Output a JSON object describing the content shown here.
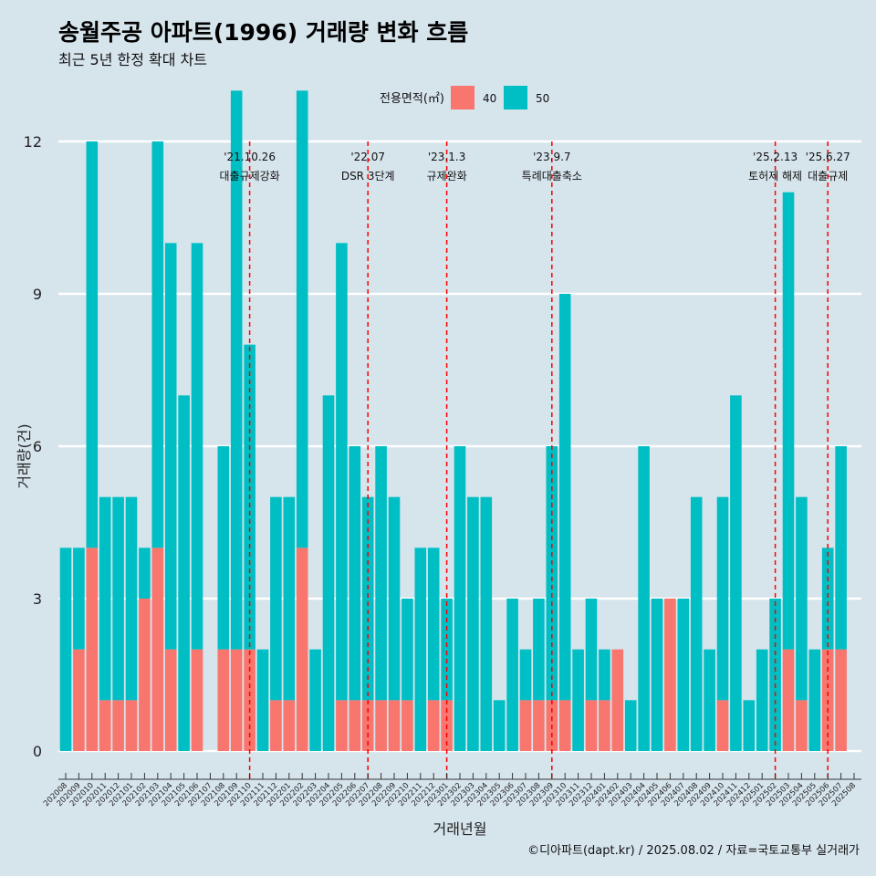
{
  "chart_data": {
    "type": "bar",
    "title": "송월주공 아파트(1996) 거래량 변화 흐름",
    "subtitle": "최근 5년 한정 확대 차트",
    "xlabel": "거래년월",
    "ylabel": "거래량(건)",
    "ylim": [
      0,
      12
    ],
    "yticks": [
      0,
      3,
      6,
      9,
      12
    ],
    "grid": true,
    "legend": {
      "title": "전용면적(㎡)",
      "position": "top"
    },
    "categories": [
      "202008",
      "202009",
      "202010",
      "202011",
      "202012",
      "202101",
      "202102",
      "202103",
      "202104",
      "202105",
      "202106",
      "202107",
      "202108",
      "202109",
      "202110",
      "202111",
      "202112",
      "202201",
      "202202",
      "202203",
      "202204",
      "202205",
      "202206",
      "202207",
      "202208",
      "202209",
      "202210",
      "202211",
      "202212",
      "202301",
      "202302",
      "202303",
      "202304",
      "202305",
      "202306",
      "202307",
      "202308",
      "202309",
      "202310",
      "202311",
      "202312",
      "202401",
      "202402",
      "202403",
      "202404",
      "202405",
      "202406",
      "202407",
      "202408",
      "202409",
      "202410",
      "202411",
      "202412",
      "202501",
      "202502",
      "202503",
      "202504",
      "202505",
      "202506",
      "202507",
      "202508"
    ],
    "series": [
      {
        "name": "40",
        "color": "#f8766d",
        "values": [
          0,
          2,
          4,
          1,
          1,
          1,
          3,
          4,
          2,
          0,
          2,
          0,
          2,
          2,
          2,
          0,
          1,
          1,
          4,
          0,
          0,
          1,
          1,
          1,
          1,
          1,
          1,
          0,
          1,
          1,
          0,
          0,
          0,
          0,
          0,
          1,
          1,
          1,
          1,
          0,
          1,
          1,
          2,
          0,
          0,
          0,
          3,
          0,
          0,
          0,
          1,
          0,
          0,
          0,
          0,
          2,
          1,
          0,
          2,
          2,
          0
        ]
      },
      {
        "name": "50",
        "color": "#00bfc4",
        "values": [
          4,
          2,
          8,
          4,
          4,
          4,
          1,
          8,
          8,
          7,
          8,
          0,
          4,
          11,
          6,
          2,
          4,
          4,
          9,
          2,
          7,
          9,
          5,
          4,
          5,
          4,
          2,
          4,
          3,
          2,
          6,
          5,
          5,
          1,
          3,
          1,
          2,
          5,
          8,
          2,
          2,
          1,
          0,
          1,
          6,
          3,
          0,
          3,
          5,
          2,
          4,
          7,
          1,
          2,
          3,
          9,
          4,
          2,
          2,
          4,
          0
        ]
      }
    ],
    "events": [
      {
        "x": "202110",
        "date": "'21.10.26",
        "label": "대출규제강화"
      },
      {
        "x": "202207",
        "date": "'22.07",
        "label": "DSR 3단계"
      },
      {
        "x": "202301",
        "date": "'23.1.3",
        "label": "규제완화"
      },
      {
        "x": "202309",
        "date": "'23.9.7",
        "label": "특례대출축소"
      },
      {
        "x": "202502",
        "date": "'25.2.13",
        "label": "토허제 해제"
      },
      {
        "x": "202506",
        "date": "'25.6.27",
        "label": "대출규제"
      }
    ],
    "event_color": "#ff0000",
    "caption": "©디아파트(dapt.kr) / 2025.08.02 / 자료=국토교통부 실거래가"
  }
}
